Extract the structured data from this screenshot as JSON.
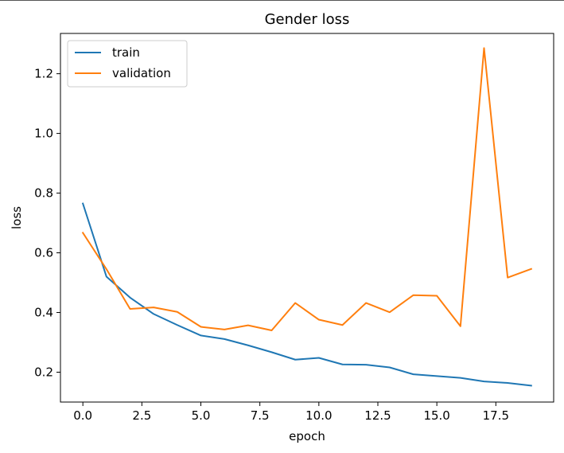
{
  "chart_data": {
    "type": "line",
    "title": "Gender loss",
    "xlabel": "epoch",
    "ylabel": "loss",
    "xlim": [
      -0.95,
      19.95
    ],
    "ylim": [
      0.1,
      1.335
    ],
    "xticks": [
      0.0,
      2.5,
      5.0,
      7.5,
      10.0,
      12.5,
      15.0,
      17.5
    ],
    "xtick_labels": [
      "0.0",
      "2.5",
      "5.0",
      "7.5",
      "10.0",
      "12.5",
      "15.0",
      "17.5"
    ],
    "yticks": [
      0.2,
      0.4,
      0.6,
      0.8,
      1.0,
      1.2
    ],
    "ytick_labels": [
      "0.2",
      "0.4",
      "0.6",
      "0.8",
      "1.0",
      "1.2"
    ],
    "grid": false,
    "legend_position": "top-left",
    "x": [
      0,
      1,
      2,
      3,
      4,
      5,
      6,
      7,
      8,
      9,
      10,
      11,
      12,
      13,
      14,
      15,
      16,
      17,
      18,
      19
    ],
    "series": [
      {
        "name": "train",
        "color": "#1f77b4",
        "values": [
          0.765,
          0.52,
          0.45,
          0.395,
          0.358,
          0.323,
          0.311,
          0.29,
          0.267,
          0.242,
          0.248,
          0.226,
          0.225,
          0.216,
          0.193,
          0.187,
          0.181,
          0.169,
          0.164,
          0.155
        ]
      },
      {
        "name": "validation",
        "color": "#ff7f0e",
        "values": [
          0.667,
          0.545,
          0.412,
          0.417,
          0.402,
          0.352,
          0.343,
          0.357,
          0.34,
          0.432,
          0.376,
          0.358,
          0.432,
          0.401,
          0.458,
          0.456,
          0.354,
          1.286,
          0.517,
          0.546
        ]
      }
    ]
  }
}
